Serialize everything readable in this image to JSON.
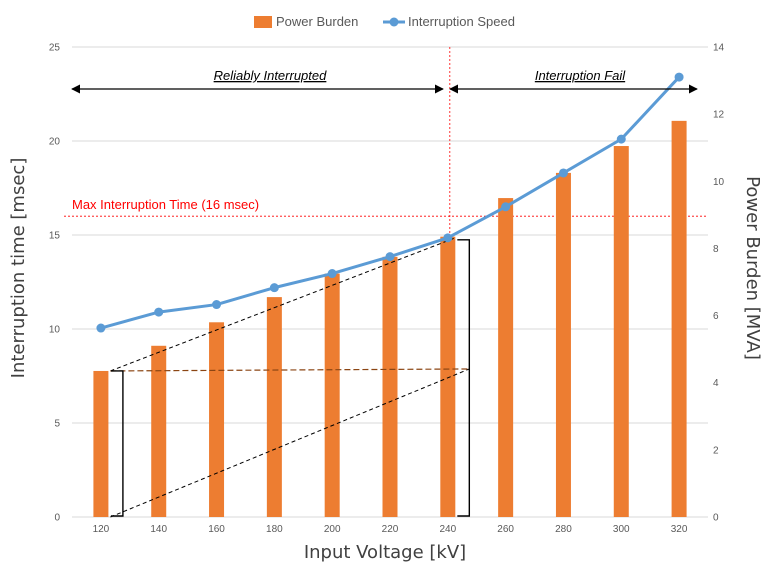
{
  "chart_data": {
    "type": "bar+line",
    "categories": [
      "120",
      "140",
      "160",
      "180",
      "200",
      "220",
      "240",
      "260",
      "280",
      "300",
      "320"
    ],
    "series": [
      {
        "name": "Power Burden",
        "type": "bar",
        "axis": "right",
        "values": [
          4.35,
          5.1,
          5.8,
          6.55,
          7.25,
          7.75,
          8.35,
          9.5,
          10.25,
          11.05,
          11.8
        ]
      },
      {
        "name": "Interruption Speed",
        "type": "line",
        "axis": "left",
        "values": [
          10.05,
          10.9,
          11.3,
          12.2,
          12.95,
          13.85,
          14.85,
          16.5,
          18.3,
          20.1,
          23.4
        ]
      }
    ],
    "xlabel": "Input Voltage [kV]",
    "ylabel_left": "Interruption time [msec]",
    "ylabel_right": "Power Burden [MVA]",
    "ylim_left": [
      0,
      25
    ],
    "ylim_right": [
      0,
      14
    ],
    "yticks_left": [
      "0",
      "5",
      "10",
      "15",
      "20",
      "25"
    ],
    "yticks_right": [
      "0",
      "2",
      "4",
      "6",
      "8",
      "10",
      "12",
      "14"
    ],
    "grid": "horizontal",
    "legend_position": "top",
    "colors": {
      "bar": "#ED7D31",
      "line": "#5B9BD5",
      "threshold": "#FF0000"
    },
    "annotations": {
      "threshold_label": "Max Interruption Time (16 msec)",
      "threshold_value": 16,
      "boundary_category": "240",
      "region_left": "Reliably Interrupted",
      "region_right": "Interruption Fail"
    }
  }
}
